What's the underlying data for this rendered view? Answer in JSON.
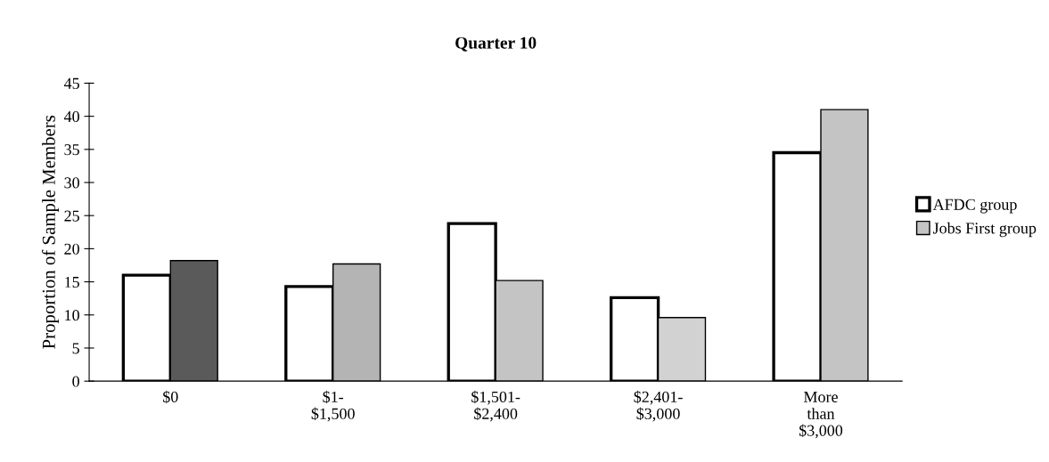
{
  "chart_data": {
    "type": "bar",
    "title": "Quarter 10",
    "ylabel": "Proportion of Sample Members",
    "categories": [
      "$0",
      "$1-\n$1,500",
      "$1,501-\n$2,400",
      "$2,401-\n$3,000",
      "More\nthan\n$3,000"
    ],
    "series": [
      {
        "name": "AFDC group",
        "color": "#ffffff",
        "values": [
          16.0,
          14.3,
          23.8,
          12.6,
          34.5
        ]
      },
      {
        "name": "Jobs First group",
        "color": "#c4c4c4",
        "colors": [
          "#5a5a5a",
          "#b4b4b4",
          "#c4c4c4",
          "#d2d2d2",
          "#c4c4c4"
        ],
        "values": [
          18.2,
          17.7,
          15.2,
          9.6,
          41.0
        ]
      }
    ],
    "ylim": [
      0,
      45
    ],
    "yticks": [
      0,
      5,
      10,
      15,
      20,
      25,
      30,
      35,
      40,
      45
    ],
    "grid": false,
    "legend": "right"
  }
}
